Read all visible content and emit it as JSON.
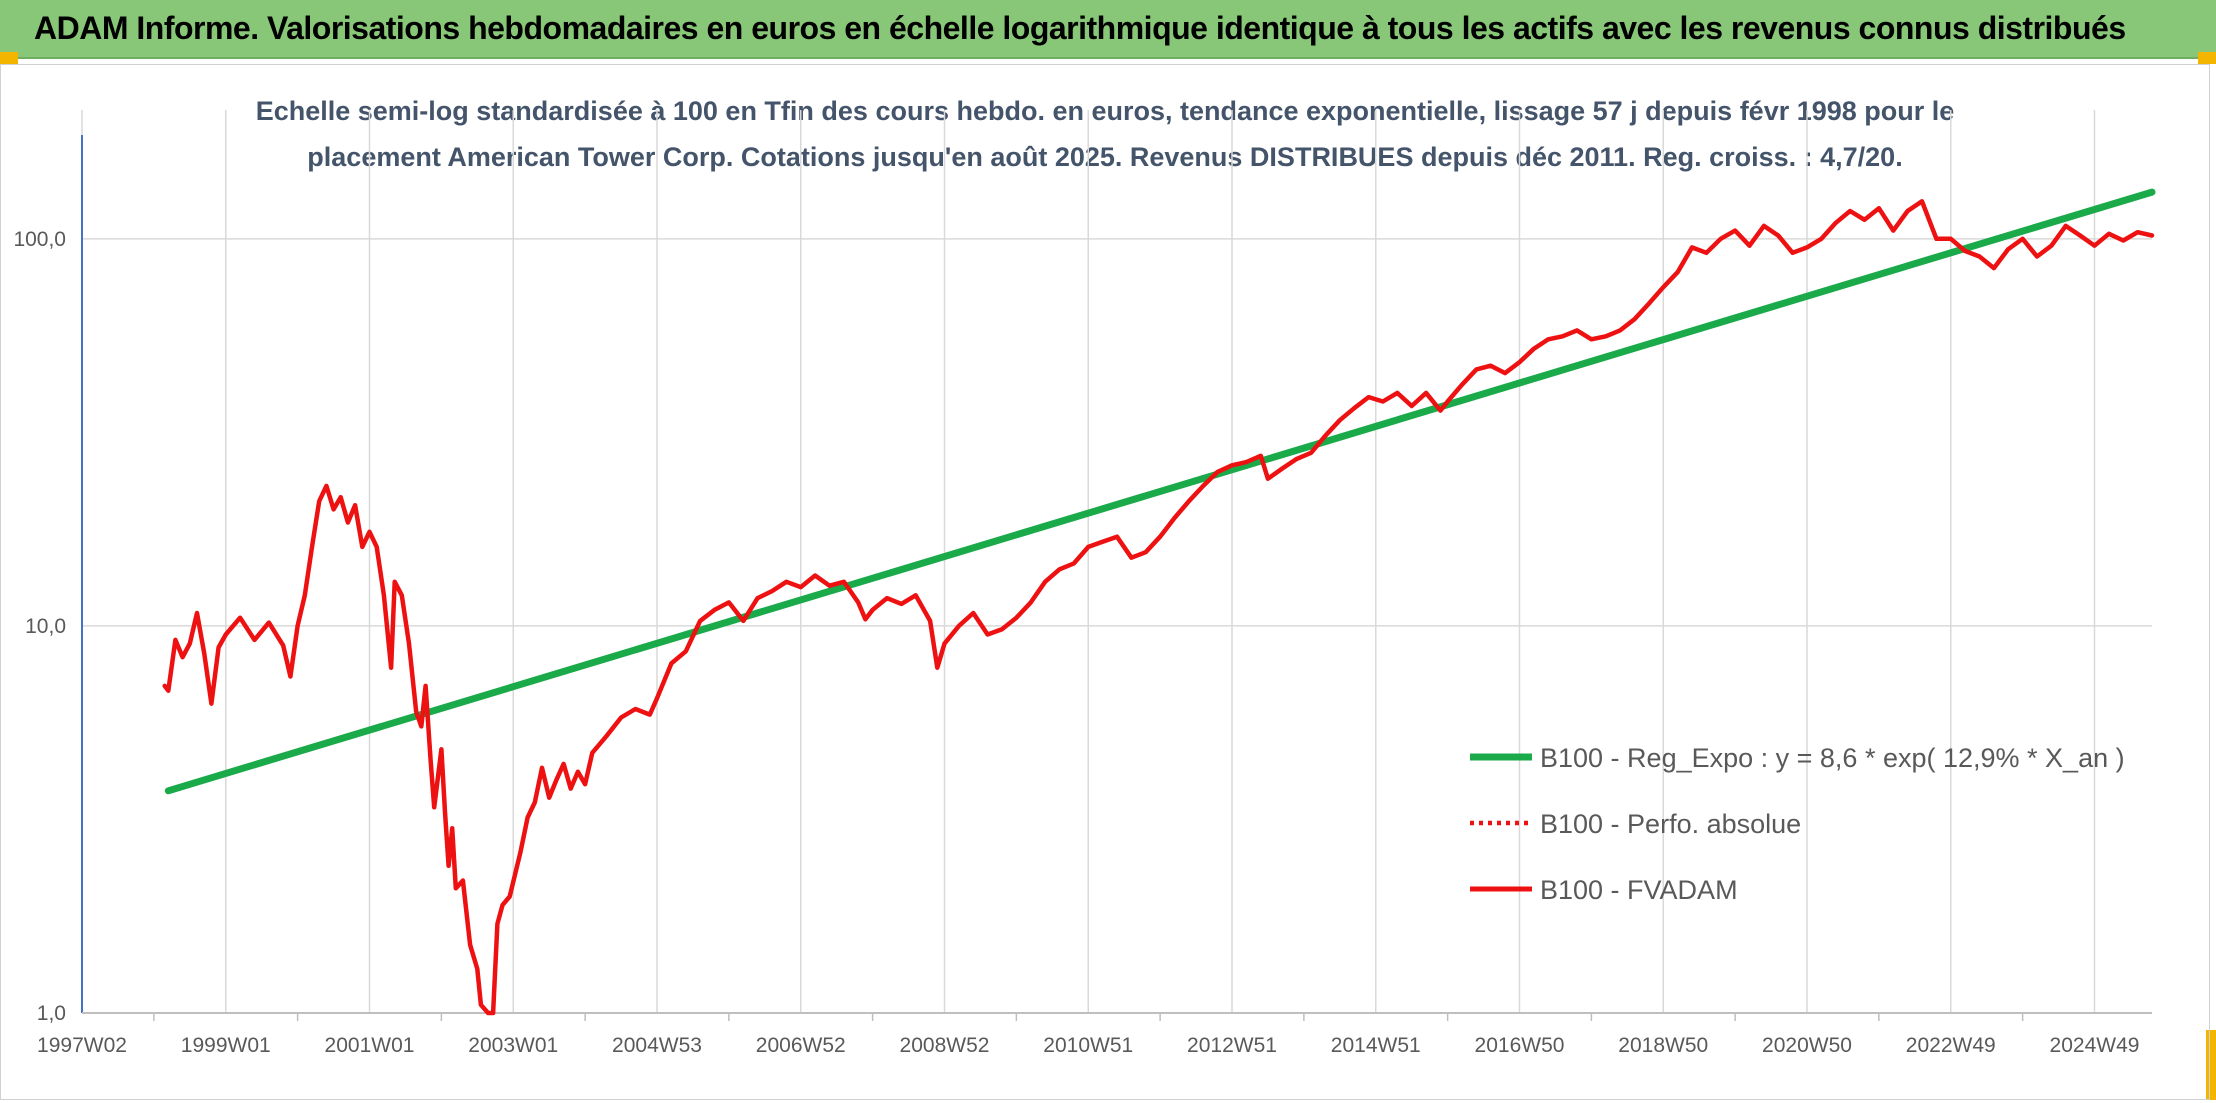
{
  "header": {
    "banner_title": "ADAM Informe. Valorisations hebdomadaires en euros en échelle logarithmique identique à tous les actifs avec les revenus connus distribués"
  },
  "colors": {
    "banner": "#88c777",
    "accent_corner": "#f4b500",
    "trend_line": "#1aaa4a",
    "price_line": "#ee1111",
    "grid": "#d9d9d9",
    "axis": "#4472c4"
  },
  "chart_data": {
    "type": "line",
    "title_lines": [
      "Echelle semi-log standardisée à 100 en Tfin des cours hebdo. en euros, tendance exponentielle, lissage 57 j depuis févr 1998 pour le",
      "placement American Tower Corp. Cotations jusqu'en août 2025. Revenus DISTRIBUES depuis déc 2011. Reg. croiss. : 4,7/20."
    ],
    "y_scale": "log",
    "ylim": [
      1,
      180
    ],
    "y_ticks": [
      {
        "value": 1,
        "label": "1,0"
      },
      {
        "value": 10,
        "label": "10,0"
      },
      {
        "value": 100,
        "label": "100,0"
      }
    ],
    "x_range": [
      1997.0,
      2025.8
    ],
    "x_ticks": [
      {
        "value": 1997.0,
        "label": "1997W02"
      },
      {
        "value": 1999.0,
        "label": "1999W01"
      },
      {
        "value": 2001.0,
        "label": "2001W01"
      },
      {
        "value": 2003.0,
        "label": "2003W01"
      },
      {
        "value": 2005.0,
        "label": "2004W53"
      },
      {
        "value": 2007.0,
        "label": "2006W52"
      },
      {
        "value": 2009.0,
        "label": "2008W52"
      },
      {
        "value": 2011.0,
        "label": "2010W51"
      },
      {
        "value": 2013.0,
        "label": "2012W51"
      },
      {
        "value": 2015.0,
        "label": "2014W51"
      },
      {
        "value": 2017.0,
        "label": "2016W50"
      },
      {
        "value": 2019.0,
        "label": "2018W50"
      },
      {
        "value": 2021.0,
        "label": "2020W50"
      },
      {
        "value": 2023.0,
        "label": "2022W49"
      },
      {
        "value": 2025.0,
        "label": "2024W49"
      }
    ],
    "grid": true,
    "legend_position": "lower-right",
    "series": [
      {
        "name": "B100 - Reg_Expo : y = 8,6 * exp( 12,9% *  X_an )",
        "style": "solid-thick",
        "color": "#1aaa4a",
        "points": [
          [
            1998.2,
            3.75
          ],
          [
            2025.8,
            132.0
          ]
        ]
      },
      {
        "name": "B100 - Perfo. absolue",
        "style": "dotted",
        "color": "#ee1111",
        "points": []
      },
      {
        "name": "B100 - FVADAM",
        "style": "solid",
        "color": "#ee1111",
        "points": [
          [
            1998.15,
            7.0
          ],
          [
            1998.2,
            6.8
          ],
          [
            1998.3,
            9.2
          ],
          [
            1998.4,
            8.3
          ],
          [
            1998.5,
            9.0
          ],
          [
            1998.6,
            10.8
          ],
          [
            1998.7,
            8.5
          ],
          [
            1998.8,
            6.3
          ],
          [
            1998.9,
            8.8
          ],
          [
            1999.0,
            9.5
          ],
          [
            1999.2,
            10.5
          ],
          [
            1999.4,
            9.2
          ],
          [
            1999.6,
            10.2
          ],
          [
            1999.8,
            8.9
          ],
          [
            1999.9,
            7.4
          ],
          [
            2000.0,
            10.0
          ],
          [
            2000.1,
            12.0
          ],
          [
            2000.2,
            16.0
          ],
          [
            2000.3,
            21.0
          ],
          [
            2000.4,
            23.0
          ],
          [
            2000.5,
            20.0
          ],
          [
            2000.6,
            21.5
          ],
          [
            2000.7,
            18.5
          ],
          [
            2000.8,
            20.5
          ],
          [
            2000.9,
            16.0
          ],
          [
            2001.0,
            17.5
          ],
          [
            2001.1,
            16.0
          ],
          [
            2001.2,
            12.0
          ],
          [
            2001.3,
            7.8
          ],
          [
            2001.35,
            13.0
          ],
          [
            2001.45,
            12.0
          ],
          [
            2001.55,
            9.0
          ],
          [
            2001.65,
            6.0
          ],
          [
            2001.72,
            5.5
          ],
          [
            2001.78,
            7.0
          ],
          [
            2001.85,
            4.5
          ],
          [
            2001.9,
            3.4
          ],
          [
            2002.0,
            4.8
          ],
          [
            2002.05,
            3.3
          ],
          [
            2002.1,
            2.4
          ],
          [
            2002.15,
            3.0
          ],
          [
            2002.2,
            2.1
          ],
          [
            2002.3,
            2.2
          ],
          [
            2002.4,
            1.5
          ],
          [
            2002.5,
            1.3
          ],
          [
            2002.55,
            1.05
          ],
          [
            2002.65,
            1.0
          ],
          [
            2002.72,
            1.0
          ],
          [
            2002.78,
            1.7
          ],
          [
            2002.85,
            1.9
          ],
          [
            2002.95,
            2.0
          ],
          [
            2003.1,
            2.6
          ],
          [
            2003.2,
            3.2
          ],
          [
            2003.3,
            3.5
          ],
          [
            2003.4,
            4.3
          ],
          [
            2003.5,
            3.6
          ],
          [
            2003.6,
            4.0
          ],
          [
            2003.7,
            4.4
          ],
          [
            2003.8,
            3.8
          ],
          [
            2003.9,
            4.2
          ],
          [
            2004.0,
            3.9
          ],
          [
            2004.1,
            4.7
          ],
          [
            2004.3,
            5.2
          ],
          [
            2004.5,
            5.8
          ],
          [
            2004.7,
            6.1
          ],
          [
            2004.9,
            5.9
          ],
          [
            2005.0,
            6.5
          ],
          [
            2005.2,
            8.0
          ],
          [
            2005.4,
            8.6
          ],
          [
            2005.6,
            10.3
          ],
          [
            2005.8,
            11.0
          ],
          [
            2006.0,
            11.5
          ],
          [
            2006.2,
            10.3
          ],
          [
            2006.4,
            11.8
          ],
          [
            2006.6,
            12.3
          ],
          [
            2006.8,
            13.0
          ],
          [
            2007.0,
            12.6
          ],
          [
            2007.2,
            13.5
          ],
          [
            2007.4,
            12.7
          ],
          [
            2007.6,
            13.0
          ],
          [
            2007.8,
            11.5
          ],
          [
            2007.9,
            10.4
          ],
          [
            2008.0,
            11.0
          ],
          [
            2008.2,
            11.8
          ],
          [
            2008.4,
            11.4
          ],
          [
            2008.6,
            12.0
          ],
          [
            2008.8,
            10.3
          ],
          [
            2008.9,
            7.8
          ],
          [
            2009.0,
            9.0
          ],
          [
            2009.2,
            10.0
          ],
          [
            2009.4,
            10.8
          ],
          [
            2009.6,
            9.5
          ],
          [
            2009.8,
            9.8
          ],
          [
            2010.0,
            10.5
          ],
          [
            2010.2,
            11.5
          ],
          [
            2010.4,
            13.0
          ],
          [
            2010.6,
            14.0
          ],
          [
            2010.8,
            14.5
          ],
          [
            2011.0,
            16.0
          ],
          [
            2011.2,
            16.5
          ],
          [
            2011.4,
            17.0
          ],
          [
            2011.6,
            15.0
          ],
          [
            2011.8,
            15.5
          ],
          [
            2012.0,
            17.0
          ],
          [
            2012.2,
            19.0
          ],
          [
            2012.4,
            21.0
          ],
          [
            2012.6,
            23.0
          ],
          [
            2012.8,
            25.0
          ],
          [
            2013.0,
            26.0
          ],
          [
            2013.2,
            26.5
          ],
          [
            2013.4,
            27.5
          ],
          [
            2013.5,
            24.0
          ],
          [
            2013.7,
            25.5
          ],
          [
            2013.9,
            27.0
          ],
          [
            2014.1,
            28.0
          ],
          [
            2014.3,
            31.0
          ],
          [
            2014.5,
            34.0
          ],
          [
            2014.7,
            36.5
          ],
          [
            2014.9,
            39.0
          ],
          [
            2015.1,
            38.0
          ],
          [
            2015.3,
            40.0
          ],
          [
            2015.5,
            37.0
          ],
          [
            2015.7,
            40.0
          ],
          [
            2015.9,
            36.0
          ],
          [
            2016.0,
            38.0
          ],
          [
            2016.2,
            42.0
          ],
          [
            2016.4,
            46.0
          ],
          [
            2016.6,
            47.0
          ],
          [
            2016.8,
            45.0
          ],
          [
            2017.0,
            48.0
          ],
          [
            2017.2,
            52.0
          ],
          [
            2017.4,
            55.0
          ],
          [
            2017.6,
            56.0
          ],
          [
            2017.8,
            58.0
          ],
          [
            2018.0,
            55.0
          ],
          [
            2018.2,
            56.0
          ],
          [
            2018.4,
            58.0
          ],
          [
            2018.6,
            62.0
          ],
          [
            2018.8,
            68.0
          ],
          [
            2019.0,
            75.0
          ],
          [
            2019.2,
            82.0
          ],
          [
            2019.4,
            95.0
          ],
          [
            2019.6,
            92.0
          ],
          [
            2019.8,
            100.0
          ],
          [
            2020.0,
            105.0
          ],
          [
            2020.2,
            96.0
          ],
          [
            2020.4,
            108.0
          ],
          [
            2020.6,
            102.0
          ],
          [
            2020.8,
            92.0
          ],
          [
            2021.0,
            95.0
          ],
          [
            2021.2,
            100.0
          ],
          [
            2021.4,
            110.0
          ],
          [
            2021.6,
            118.0
          ],
          [
            2021.8,
            112.0
          ],
          [
            2022.0,
            120.0
          ],
          [
            2022.2,
            105.0
          ],
          [
            2022.4,
            118.0
          ],
          [
            2022.6,
            125.0
          ],
          [
            2022.8,
            100.0
          ],
          [
            2023.0,
            100.0
          ],
          [
            2023.2,
            93.0
          ],
          [
            2023.4,
            90.0
          ],
          [
            2023.6,
            84.0
          ],
          [
            2023.8,
            94.0
          ],
          [
            2024.0,
            100.0
          ],
          [
            2024.2,
            90.0
          ],
          [
            2024.4,
            96.0
          ],
          [
            2024.6,
            108.0
          ],
          [
            2024.8,
            102.0
          ],
          [
            2025.0,
            96.0
          ],
          [
            2025.2,
            103.0
          ],
          [
            2025.4,
            99.0
          ],
          [
            2025.6,
            104.0
          ],
          [
            2025.8,
            102.0
          ]
        ]
      }
    ]
  }
}
